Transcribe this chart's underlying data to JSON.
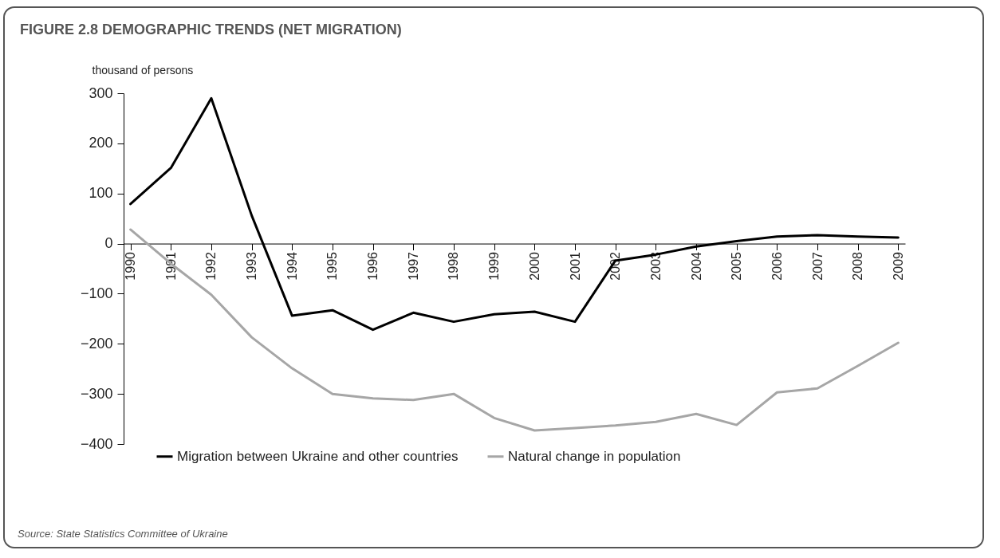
{
  "chart_data": {
    "type": "line",
    "title": "FIGURE 2.8 DEMOGRAPHIC TRENDS (NET MIGRATION)",
    "ylabel": "thousand of persons",
    "categories": [
      "1990",
      "1991",
      "1992",
      "1993",
      "1994",
      "1995",
      "1996",
      "1997",
      "1998",
      "1999",
      "2000",
      "2001",
      "2002",
      "2003",
      "2004",
      "2005",
      "2006",
      "2007",
      "2008",
      "2009"
    ],
    "series": [
      {
        "name": "Migration between Ukraine and other countries",
        "color": "#000000",
        "values": [
          79,
          151,
          290,
          56,
          -144,
          -133,
          -172,
          -138,
          -156,
          -141,
          -136,
          -156,
          -34,
          -22,
          -6,
          5,
          14,
          17,
          14,
          12
        ]
      },
      {
        "name": "Natural change in population",
        "color": "#a6a6a6",
        "values": [
          28,
          -40,
          -102,
          -187,
          -249,
          -300,
          -309,
          -312,
          -300,
          -348,
          -373,
          -368,
          -363,
          -356,
          -340,
          -362,
          -297,
          -289,
          -244,
          -198
        ]
      }
    ],
    "ylim": [
      -400,
      300
    ],
    "yticks": [
      -400,
      -300,
      -200,
      -100,
      0,
      100,
      200,
      300
    ],
    "grid": false,
    "legend": "bottom",
    "marker": "none",
    "line_style": "solid",
    "annotations": [
      "Source: State Statistics Committee of Ukraine"
    ]
  }
}
